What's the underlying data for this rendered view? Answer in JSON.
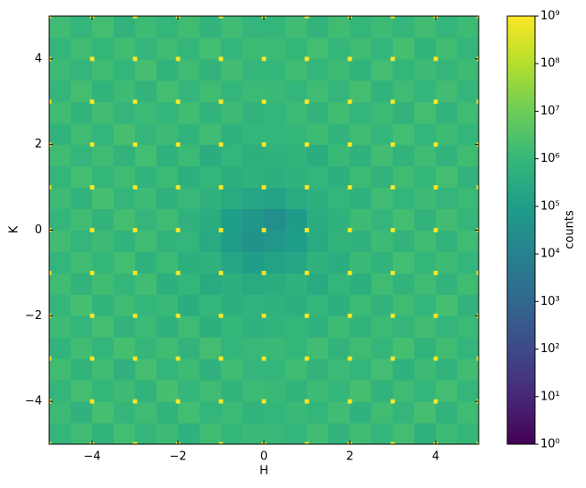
{
  "chart_data": {
    "type": "heatmap",
    "x_label": "H",
    "y_label": "K",
    "colorbar_label": "counts",
    "colormap": "viridis",
    "log_color": true,
    "xlim": [
      -5,
      5
    ],
    "ylim": [
      -5,
      5
    ],
    "clim": [
      1,
      1000000000
    ],
    "xticks": [
      {
        "value": -4,
        "label": "−4"
      },
      {
        "value": -2,
        "label": "−2"
      },
      0,
      2,
      4
    ],
    "yticks": [
      {
        "value": -4,
        "label": "−4"
      },
      {
        "value": -2,
        "label": "−2"
      },
      0,
      2,
      4
    ],
    "cticks": [
      {
        "value": 1,
        "label": "10⁰"
      },
      {
        "value": 10,
        "label": "10¹"
      },
      {
        "value": 100,
        "label": "10²"
      },
      {
        "value": 1000,
        "label": "10³"
      },
      {
        "value": 10000,
        "label": "10⁴"
      },
      {
        "value": 100000,
        "label": "10⁵"
      },
      {
        "value": 1000000,
        "label": "10⁶"
      },
      {
        "value": 10000000,
        "label": "10⁷"
      },
      {
        "value": 100000000,
        "label": "10⁸"
      },
      {
        "value": 1000000000,
        "label": "10⁹"
      }
    ],
    "x_edges": [
      -5,
      -4.5,
      -4,
      -3.5,
      -3,
      -2.5,
      -2,
      -1.5,
      -1,
      -0.5,
      0,
      0.5,
      1,
      1.5,
      2,
      2.5,
      3,
      3.5,
      4,
      4.5,
      5
    ],
    "y_edges": [
      -5,
      -4.5,
      -4,
      -3.5,
      -3,
      -2.5,
      -2,
      -1.5,
      -1,
      -0.5,
      0,
      0.5,
      1,
      1.5,
      2,
      2.5,
      3,
      3.5,
      4,
      4.5,
      5
    ],
    "z": [
      [
        900000,
        1500000,
        700000,
        1800000,
        800000,
        1400000,
        600000,
        1600000,
        900000,
        1200000,
        1100000,
        800000,
        1700000,
        700000,
        1500000,
        900000,
        1900000,
        600000,
        1400000,
        1000000
      ],
      [
        1300000,
        600000,
        2000000,
        900000,
        1500000,
        700000,
        1800000,
        800000,
        1300000,
        700000,
        800000,
        1200000,
        900000,
        1700000,
        600000,
        1600000,
        800000,
        2100000,
        700000,
        1500000
      ],
      [
        800000,
        1900000,
        900000,
        1400000,
        700000,
        2200000,
        900000,
        1500000,
        700000,
        1300000,
        1200000,
        700000,
        1400000,
        900000,
        2000000,
        700000,
        1500000,
        800000,
        1800000,
        900000
      ],
      [
        1600000,
        700000,
        1500000,
        600000,
        1900000,
        800000,
        1400000,
        600000,
        1600000,
        800000,
        900000,
        1500000,
        700000,
        1300000,
        800000,
        1800000,
        600000,
        1400000,
        700000,
        1700000
      ],
      [
        700000,
        1700000,
        800000,
        2000000,
        900000,
        1600000,
        700000,
        1900000,
        800000,
        1100000,
        1200000,
        900000,
        1700000,
        700000,
        1500000,
        900000,
        2000000,
        700000,
        1600000,
        800000
      ],
      [
        1400000,
        800000,
        1800000,
        700000,
        1300000,
        600000,
        1500000,
        500000,
        1000000,
        600000,
        700000,
        900000,
        600000,
        1400000,
        700000,
        1300000,
        800000,
        1700000,
        900000,
        1300000
      ],
      [
        900000,
        2000000,
        700000,
        1500000,
        800000,
        1200000,
        400000,
        900000,
        500000,
        700000,
        600000,
        500000,
        800000,
        500000,
        1300000,
        700000,
        1600000,
        800000,
        2000000,
        700000
      ],
      [
        1500000,
        700000,
        1600000,
        900000,
        1700000,
        500000,
        900000,
        300000,
        500000,
        300000,
        400000,
        600000,
        300000,
        900000,
        500000,
        1600000,
        700000,
        1500000,
        700000,
        1600000
      ],
      [
        800000,
        1500000,
        900000,
        1800000,
        600000,
        1300000,
        500000,
        600000,
        200000,
        100000,
        150000,
        200000,
        600000,
        400000,
        1200000,
        700000,
        1800000,
        900000,
        1400000,
        800000
      ],
      [
        1700000,
        800000,
        1400000,
        700000,
        1500000,
        700000,
        800000,
        300000,
        90000,
        40000,
        60000,
        100000,
        300000,
        700000,
        600000,
        1400000,
        700000,
        1600000,
        700000,
        1500000
      ],
      [
        900000,
        1600000,
        700000,
        1900000,
        800000,
        1500000,
        600000,
        400000,
        100000,
        50000,
        30000,
        80000,
        400000,
        600000,
        1400000,
        800000,
        1900000,
        700000,
        1700000,
        900000
      ],
      [
        1400000,
        700000,
        2000000,
        800000,
        1400000,
        600000,
        1100000,
        600000,
        300000,
        200000,
        150000,
        300000,
        500000,
        900000,
        600000,
        1500000,
        800000,
        1400000,
        800000,
        1300000
      ],
      [
        800000,
        1800000,
        900000,
        1500000,
        700000,
        1300000,
        500000,
        900000,
        500000,
        600000,
        500000,
        600000,
        800000,
        500000,
        1300000,
        700000,
        1600000,
        900000,
        1900000,
        700000
      ],
      [
        1600000,
        800000,
        1500000,
        700000,
        1800000,
        600000,
        1300000,
        400000,
        800000,
        500000,
        600000,
        700000,
        400000,
        1200000,
        600000,
        1700000,
        700000,
        1500000,
        700000,
        1600000
      ],
      [
        700000,
        1500000,
        800000,
        2100000,
        900000,
        1400000,
        700000,
        1500000,
        600000,
        900000,
        800000,
        1000000,
        1400000,
        700000,
        1500000,
        900000,
        1800000,
        800000,
        1400000,
        900000
      ],
      [
        1500000,
        700000,
        1700000,
        800000,
        1300000,
        800000,
        1700000,
        700000,
        1400000,
        700000,
        800000,
        1300000,
        700000,
        1700000,
        800000,
        1300000,
        700000,
        1900000,
        700000,
        1500000
      ],
      [
        900000,
        1900000,
        700000,
        1400000,
        700000,
        1800000,
        800000,
        1600000,
        800000,
        1300000,
        1200000,
        800000,
        1500000,
        800000,
        1900000,
        700000,
        1500000,
        800000,
        1700000,
        800000
      ],
      [
        1300000,
        800000,
        1600000,
        900000,
        2000000,
        700000,
        1500000,
        700000,
        1700000,
        900000,
        900000,
        1600000,
        800000,
        1400000,
        700000,
        1800000,
        900000,
        1400000,
        900000,
        1400000
      ],
      [
        800000,
        1600000,
        900000,
        1700000,
        800000,
        1500000,
        900000,
        1800000,
        800000,
        1400000,
        1300000,
        900000,
        1800000,
        900000,
        1500000,
        800000,
        2000000,
        700000,
        1600000,
        800000
      ],
      [
        1500000,
        800000,
        1800000,
        700000,
        1400000,
        900000,
        1600000,
        700000,
        1500000,
        800000,
        900000,
        1500000,
        700000,
        1600000,
        900000,
        1400000,
        800000,
        1700000,
        800000,
        1400000
      ]
    ],
    "peaks": {
      "h": [
        -5,
        -4,
        -3,
        -2,
        -1,
        0,
        1,
        2,
        3,
        4,
        5
      ],
      "k": [
        -5,
        -4,
        -3,
        -2,
        -1,
        0,
        1,
        2,
        3,
        4,
        5
      ],
      "width": 0.1,
      "value": 1000000000
    }
  }
}
